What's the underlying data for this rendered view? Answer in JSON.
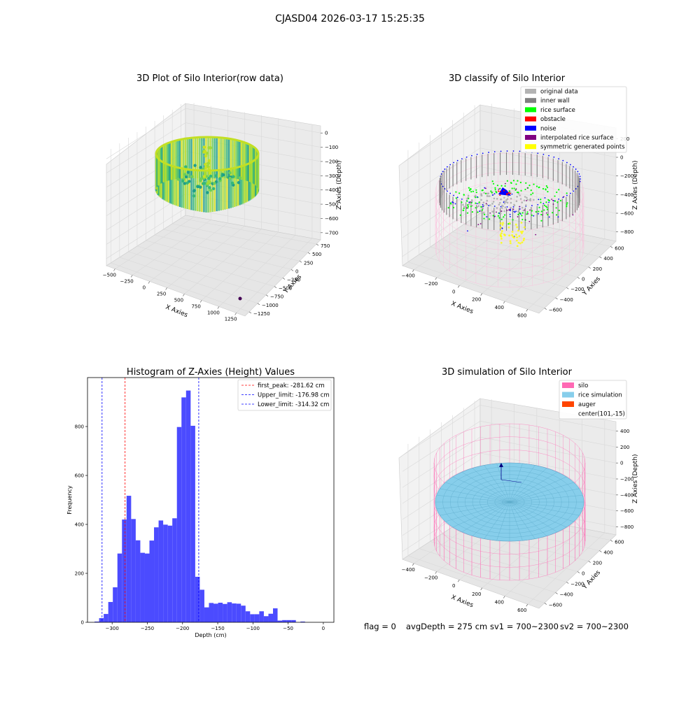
{
  "suptitle": "CJASD04 2026-03-17 15:25:35",
  "panels": {
    "raw": {
      "title": "3D Plot of Silo Interior(row data)",
      "xlabel": "X Axies",
      "ylabel": "Y Axies",
      "zlabel": "Z Axies (Depth)",
      "xticks": [
        "−500",
        "−250",
        "0",
        "250",
        "500",
        "750",
        "1000",
        "1250"
      ],
      "yticks": [
        "750",
        "500",
        "250",
        "0",
        "−250",
        "−500",
        "−750",
        "−1000",
        "−1250"
      ],
      "zticks": [
        "0",
        "−100",
        "−200",
        "−300",
        "−400",
        "−500",
        "−600",
        "−700"
      ]
    },
    "classify": {
      "title": "3D classify of Silo Interior",
      "xlabel": "X Axies",
      "ylabel": "Y Axies",
      "zlabel": "Z Axies (Depth)",
      "xticks": [
        "−400",
        "−200",
        "0",
        "200",
        "400",
        "600"
      ],
      "yticks": [
        "600",
        "400",
        "200",
        "0",
        "−200",
        "−400",
        "−600"
      ],
      "zticks": [
        "200",
        "0",
        "−200",
        "−400",
        "−600",
        "−800"
      ],
      "legend": [
        {
          "label": "original data",
          "color": "#b3b3b3"
        },
        {
          "label": "inner wall",
          "color": "#808080"
        },
        {
          "label": "rice surface",
          "color": "#00ff00"
        },
        {
          "label": "obstacle",
          "color": "#ff0000"
        },
        {
          "label": "noise",
          "color": "#0000ff"
        },
        {
          "label": "interpolated rice surface",
          "color": "#800080"
        },
        {
          "label": "symmetric generated points",
          "color": "#ffff00"
        }
      ]
    },
    "sim": {
      "title": "3D simulation of Silo Interior",
      "xlabel": "X Axies",
      "ylabel": "Y Axies",
      "zlabel": "Z Axies (Depth)",
      "xticks": [
        "−400",
        "−200",
        "0",
        "200",
        "400",
        "600"
      ],
      "yticks": [
        "600",
        "400",
        "200",
        "0",
        "−200",
        "−400",
        "−600"
      ],
      "zticks": [
        "400",
        "200",
        "0",
        "−200",
        "−400",
        "−600",
        "−800"
      ],
      "legend": [
        {
          "label": "silo",
          "color": "#ff69b4"
        },
        {
          "label": "rice simulation",
          "color": "#87ceeb"
        },
        {
          "label": "auger",
          "color": "#ff4500"
        },
        {
          "label": "center(101,-15)",
          "color": ""
        }
      ]
    }
  },
  "status_line": {
    "flag": "flag = 0",
    "avg": "avgDepth = 275 cm",
    "sv1": "sv1 = 700~2300",
    "sv2": "sv2 = 700~2300"
  },
  "chart_data": {
    "type": "bar",
    "title": "Histogram of Z-Axies (Height) Values",
    "xlabel": "Depth (cm)",
    "ylabel": "Frequency",
    "xlim": [
      -335,
      15
    ],
    "ylim": [
      0,
      1000
    ],
    "xticks": [
      "−300",
      "−250",
      "−200",
      "−150",
      "−100",
      "−50",
      "0"
    ],
    "yticks": [
      "0",
      "200",
      "400",
      "600",
      "800"
    ],
    "bins": {
      "start": -325,
      "width": 6.5,
      "values": [
        3,
        17,
        34,
        83,
        143,
        281,
        420,
        517,
        422,
        335,
        284,
        281,
        334,
        388,
        416,
        399,
        395,
        425,
        798,
        919,
        947,
        803,
        186,
        133,
        61,
        79,
        76,
        80,
        75,
        82,
        77,
        76,
        68,
        45,
        33,
        33,
        45,
        25,
        35,
        57,
        7,
        9,
        9,
        9,
        0,
        3
      ]
    },
    "vlines": [
      {
        "name": "first_peak: -281.62 cm",
        "x": -281.62,
        "color": "#ff0000"
      },
      {
        "name": "Upper_limit: -176.98 cm",
        "x": -176.98,
        "color": "#0000ff"
      },
      {
        "name": "Lower_limit: -314.32 cm",
        "x": -314.32,
        "color": "#0000ff"
      }
    ],
    "bar_color": "#4b4bff",
    "legend_placement": "top-right",
    "grid": false
  }
}
